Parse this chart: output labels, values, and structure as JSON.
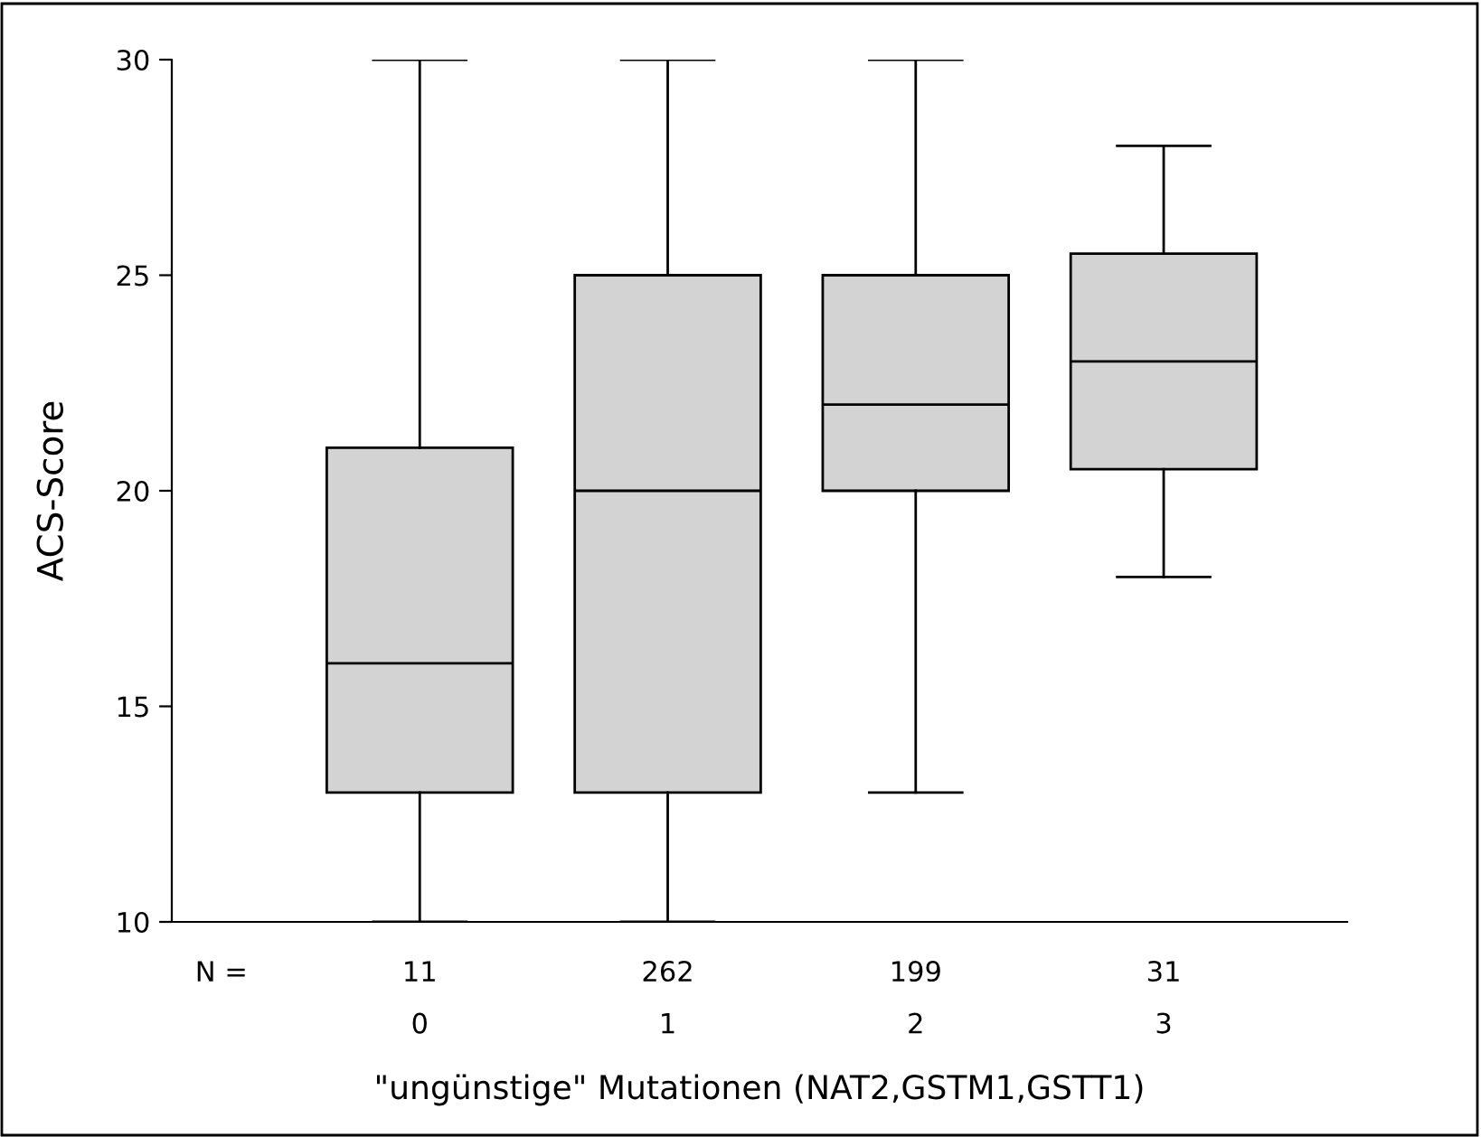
{
  "chart_data": {
    "type": "box",
    "xlabel": "\"ungünstige\" Mutationen (NAT2,GSTM1,GSTT1)",
    "ylabel": "ACS-Score",
    "categories": [
      "0",
      "1",
      "2",
      "3"
    ],
    "boxes": [
      {
        "low": 10,
        "q1": 13,
        "median": 16,
        "q3": 21,
        "high": 30
      },
      {
        "low": 10,
        "q1": 13,
        "median": 20,
        "q3": 25,
        "high": 30
      },
      {
        "low": 13,
        "q1": 20,
        "median": 22,
        "q3": 25,
        "high": 30
      },
      {
        "low": 18,
        "q1": 20.5,
        "median": 23,
        "q3": 25.5,
        "high": 28
      }
    ],
    "color": "#d3d3d3",
    "ylim": [
      10,
      30
    ],
    "yticks": [
      10,
      15,
      20,
      25,
      30
    ],
    "annotations": [
      "N =",
      "11",
      "262",
      "199",
      "31"
    ],
    "grid": false
  }
}
